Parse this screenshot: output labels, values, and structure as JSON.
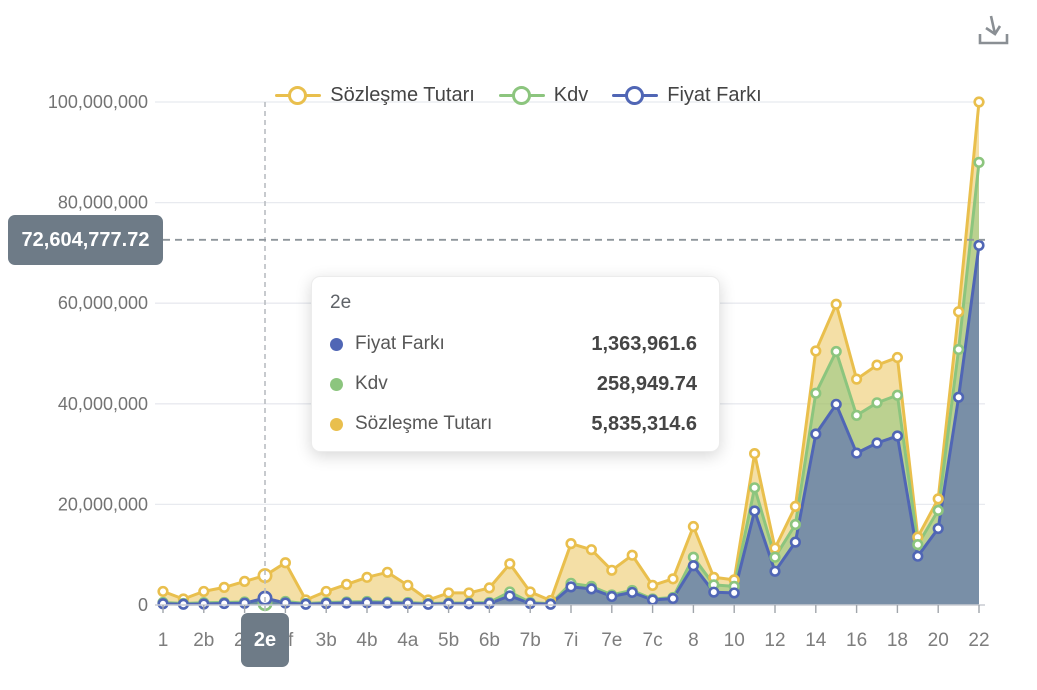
{
  "toolbar": {
    "download_label": "download"
  },
  "legend": {
    "items": [
      {
        "label": "Sözleşme Tutarı",
        "color": "#e9bf4d"
      },
      {
        "label": "Kdv",
        "color": "#8cc57e"
      },
      {
        "label": "Fiyat Farkı",
        "color": "#5066b5"
      }
    ]
  },
  "tooltip": {
    "title": "2e",
    "rows": [
      {
        "label": "Fiyat Farkı",
        "value": "1,363,961.6",
        "color": "#5066b5"
      },
      {
        "label": "Kdv",
        "value": "258,949.74",
        "color": "#8cc57e"
      },
      {
        "label": "Sözleşme Tutarı",
        "value": "5,835,314.6",
        "color": "#e9bf4d"
      }
    ]
  },
  "axis_pointer": {
    "x_label": "2e",
    "y_label": "72,604,777.72",
    "y_value": 72604777.72,
    "hover_index": 5,
    "badge_color": "#6e7b87"
  },
  "chart_data": {
    "type": "area",
    "title": "",
    "xlabel": "",
    "ylabel": "",
    "ylim": [
      0,
      100000000
    ],
    "grid": true,
    "legend_position": "top",
    "y_ticks": [
      0,
      20000000,
      40000000,
      60000000,
      80000000,
      100000000
    ],
    "y_tick_labels": [
      "0",
      "20,000,000",
      "40,000,000",
      "60,000,000",
      "80,000,000",
      "100,000,000"
    ],
    "x_tick_labels": [
      "1",
      "2b",
      "2d",
      "2f",
      "3b",
      "4b",
      "4a",
      "5b",
      "6b",
      "7b",
      "7i",
      "7e",
      "7c",
      "8",
      "10",
      "12",
      "14",
      "16",
      "18",
      "20",
      "22"
    ],
    "categories": [
      "1",
      "",
      "2b",
      "",
      "2d",
      "2e",
      "2f",
      "",
      "3b",
      "",
      "4b",
      "",
      "4a",
      "",
      "5b",
      "",
      "6b",
      "",
      "7b",
      "",
      "7i",
      "",
      "7e",
      "",
      "7c",
      "",
      "8",
      "",
      "10",
      "",
      "12",
      "",
      "14",
      "",
      "16",
      "",
      "18",
      "",
      "20",
      "",
      "22"
    ],
    "series": [
      {
        "name": "Sözleşme Tutarı",
        "color": "#e9bf4d",
        "fill": "rgba(233,191,77,0.50)",
        "values": [
          2700000,
          1200000,
          2700000,
          3500000,
          4700000,
          5835314.6,
          8400000,
          1000000,
          2700000,
          4100000,
          5500000,
          6500000,
          3900000,
          1000000,
          2400000,
          2400000,
          3400000,
          8200000,
          2600000,
          900000,
          12200000,
          11000000,
          6900000,
          9900000,
          3900000,
          5200000,
          15600000,
          5500000,
          5000000,
          30100000,
          11300000,
          19600000,
          50500000,
          59800000,
          44900000,
          47700000,
          49200000,
          13500000,
          21100000,
          58300000,
          100000000
        ]
      },
      {
        "name": "Kdv",
        "color": "#8cc57e",
        "fill": "rgba(140,197,126,0.55)",
        "values": [
          500000,
          300000,
          450000,
          500000,
          600000,
          258949.74,
          700000,
          300000,
          500000,
          600000,
          700000,
          600000,
          500000,
          300000,
          400000,
          400000,
          500000,
          2600000,
          500000,
          250000,
          4300000,
          3700000,
          2000000,
          2900000,
          1200000,
          1500000,
          9500000,
          4000000,
          3700000,
          23300000,
          9500000,
          16000000,
          42100000,
          50400000,
          37700000,
          40200000,
          41700000,
          12000000,
          18800000,
          50800000,
          88000000
        ]
      },
      {
        "name": "Fiyat Farkı",
        "color": "#5066b5",
        "fill": "rgba(80,102,181,0.62)",
        "values": [
          250000,
          150000,
          200000,
          300000,
          350000,
          1363961.6,
          400000,
          150000,
          300000,
          400000,
          450000,
          400000,
          300000,
          150000,
          250000,
          250000,
          300000,
          1800000,
          300000,
          150000,
          3600000,
          3200000,
          1700000,
          2500000,
          1000000,
          1300000,
          7800000,
          2550000,
          2400000,
          18700000,
          6700000,
          12500000,
          34000000,
          39900000,
          30200000,
          32200000,
          33600000,
          9700000,
          15200000,
          41300000,
          71500000
        ]
      }
    ]
  }
}
